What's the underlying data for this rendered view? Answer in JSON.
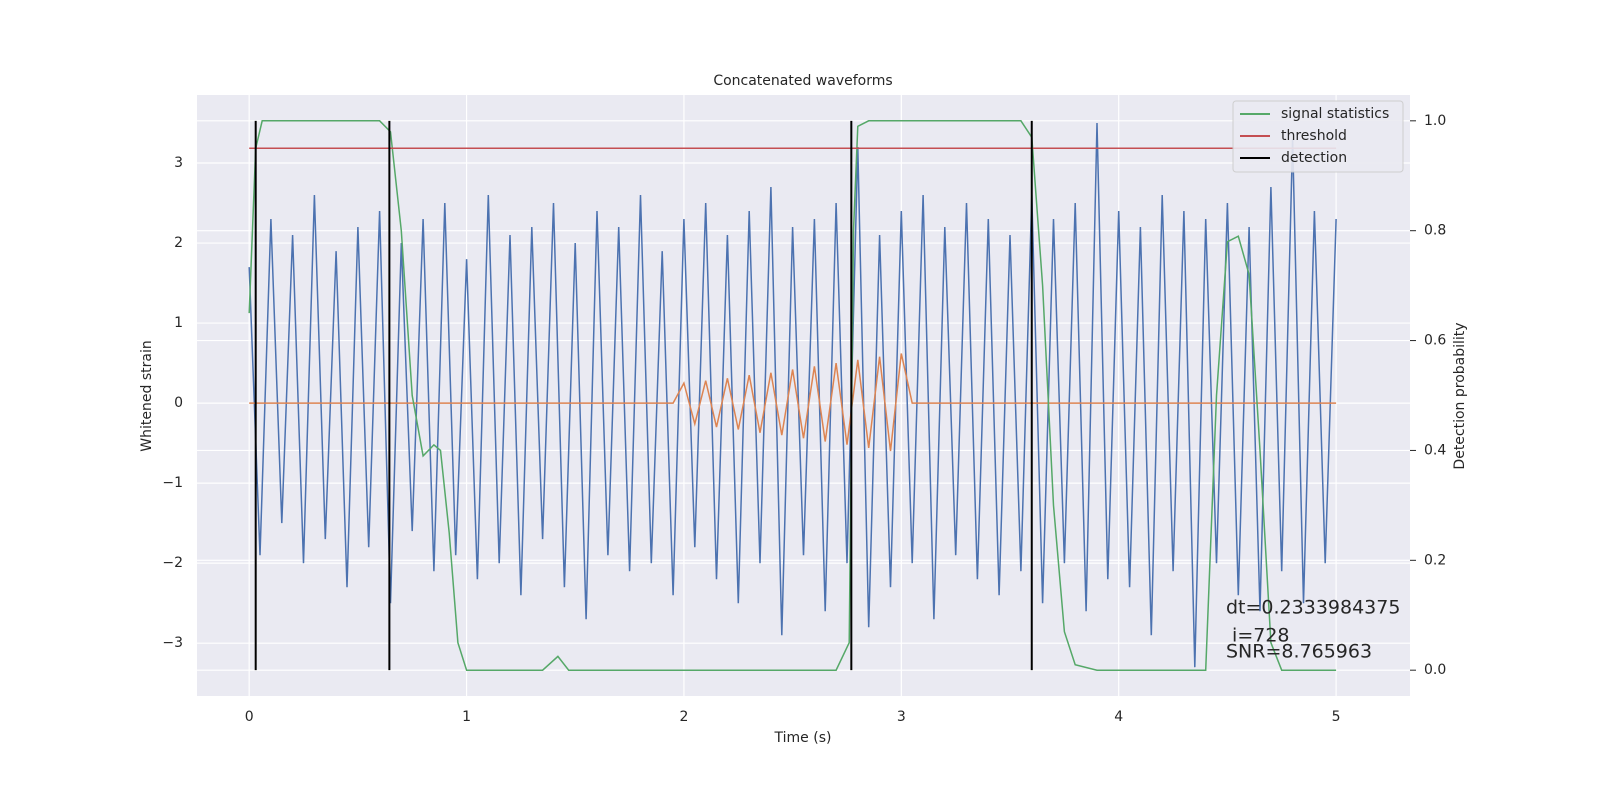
{
  "chart_data": {
    "type": "line",
    "title": "Concatenated waveforms",
    "xlabel": "Time (s)",
    "ylabel": "Whitened strain",
    "y2label": "Detection probability",
    "xlim": [
      -0.24,
      5.34
    ],
    "ylim": [
      -3.66,
      3.85
    ],
    "y2lim": [
      -0.047,
      1.047
    ],
    "xticks": [
      0,
      1,
      2,
      3,
      4,
      5
    ],
    "yticks": [
      {
        "value": -3,
        "label": "−3"
      },
      {
        "value": -2,
        "label": "−2"
      },
      {
        "value": -1,
        "label": "−1"
      },
      0,
      1,
      2,
      3
    ],
    "y2ticks": [
      {
        "value": 0,
        "label": "0.0"
      },
      {
        "value": 0.2,
        "label": "0.2"
      },
      {
        "value": 0.4,
        "label": "0.4"
      },
      {
        "value": 0.6,
        "label": "0.6"
      },
      {
        "value": 0.8,
        "label": "0.8"
      },
      {
        "value": 1,
        "label": "1.0"
      }
    ],
    "grid": true,
    "legend": "upper right",
    "x": [
      0,
      0.05,
      0.1,
      0.15,
      0.2,
      0.25,
      0.3,
      0.35,
      0.4,
      0.45,
      0.5,
      0.55,
      0.6,
      0.65,
      0.7,
      0.75,
      0.8,
      0.85,
      0.9,
      0.95,
      1,
      1.05,
      1.1,
      1.15,
      1.2,
      1.25,
      1.3,
      1.35,
      1.4,
      1.45,
      1.5,
      1.55,
      1.6,
      1.65,
      1.7,
      1.75,
      1.8,
      1.85,
      1.9,
      1.95,
      2,
      2.05,
      2.1,
      2.15,
      2.2,
      2.25,
      2.3,
      2.35,
      2.4,
      2.45,
      2.5,
      2.55,
      2.6,
      2.65,
      2.7,
      2.75,
      2.8,
      2.85,
      2.9,
      2.95,
      3,
      3.05,
      3.1,
      3.15,
      3.2,
      3.25,
      3.3,
      3.35,
      3.4,
      3.45,
      3.5,
      3.55,
      3.6,
      3.65,
      3.7,
      3.75,
      3.8,
      3.85,
      3.9,
      3.95,
      4,
      4.05,
      4.1,
      4.15,
      4.2,
      4.25,
      4.3,
      4.35,
      4.4,
      4.45,
      4.5,
      4.55,
      4.6,
      4.65,
      4.7,
      4.75,
      4.8,
      4.85,
      4.9,
      4.95,
      5
    ],
    "series": [
      {
        "color": "#4c72b0",
        "values": [
          1.7,
          -1.9,
          2.3,
          -1.5,
          2.1,
          -2.0,
          2.6,
          -1.7,
          1.9,
          -2.3,
          2.2,
          -1.8,
          2.4,
          -2.5,
          2.0,
          -1.6,
          2.3,
          -2.1,
          2.5,
          -1.9,
          1.8,
          -2.2,
          2.6,
          -2.0,
          2.1,
          -2.4,
          2.2,
          -1.7,
          2.5,
          -2.3,
          2.0,
          -2.7,
          2.4,
          -1.9,
          2.2,
          -2.1,
          2.6,
          -2.0,
          1.9,
          -2.4,
          2.3,
          -1.8,
          2.5,
          -2.2,
          2.1,
          -2.5,
          2.4,
          -2.0,
          2.7,
          -2.9,
          2.2,
          -1.9,
          2.3,
          -2.6,
          2.5,
          -2.0,
          3.2,
          -2.8,
          2.1,
          -2.3,
          2.4,
          -2.0,
          2.6,
          -2.7,
          2.2,
          -1.9,
          2.5,
          -2.2,
          2.3,
          -2.4,
          2.1,
          -2.1,
          2.6,
          -2.5,
          2.3,
          -2.0,
          2.5,
          -2.6,
          3.5,
          -2.2,
          2.4,
          -2.3,
          2.2,
          -2.9,
          2.6,
          -2.1,
          2.4,
          -3.3,
          2.3,
          -2.0,
          2.5,
          -2.4,
          2.2,
          -2.6,
          2.7,
          -2.1,
          3.3,
          -2.5,
          2.4,
          -2.0,
          2.3
        ]
      },
      {
        "color": "#dd8452",
        "values": [
          0,
          0,
          0,
          0,
          0,
          0,
          0,
          0,
          0,
          0,
          0,
          0,
          0,
          0,
          0,
          0,
          0,
          0,
          0,
          0,
          0,
          0,
          0,
          0,
          0,
          0,
          0,
          0,
          0,
          0,
          0,
          0,
          0,
          0,
          0,
          0,
          0,
          0,
          0,
          0,
          0.25,
          -0.26,
          0.28,
          -0.3,
          0.31,
          -0.33,
          0.35,
          -0.37,
          0.38,
          -0.4,
          0.42,
          -0.44,
          0.46,
          -0.48,
          0.5,
          -0.52,
          0.54,
          -0.56,
          0.58,
          -0.6,
          0.62,
          0,
          0,
          0,
          0,
          0,
          0,
          0,
          0,
          0,
          0,
          0,
          0,
          0,
          0,
          0,
          0,
          0,
          0,
          0,
          0,
          0,
          0,
          0,
          0,
          0,
          0,
          0,
          0,
          0,
          0,
          0,
          0,
          0,
          0,
          0,
          0,
          0,
          0,
          0,
          0
        ]
      },
      {
        "name": "signal statistics",
        "color": "#55a868",
        "axis": "y2",
        "x": [
          0,
          0.03,
          0.06,
          0.6,
          0.65,
          0.7,
          0.75,
          0.8,
          0.85,
          0.88,
          0.92,
          0.96,
          1.0,
          1.35,
          1.42,
          1.47,
          2.7,
          2.76,
          2.78,
          2.8,
          2.85,
          3.55,
          3.6,
          3.65,
          3.7,
          3.75,
          3.8,
          3.9,
          4.4,
          4.45,
          4.5,
          4.55,
          4.6,
          4.65,
          4.7,
          4.75,
          5.0
        ],
        "values": [
          0.65,
          0.95,
          1.0,
          1.0,
          0.98,
          0.8,
          0.5,
          0.39,
          0.41,
          0.4,
          0.25,
          0.05,
          0.0,
          0.0,
          0.025,
          0.0,
          0.0,
          0.05,
          0.8,
          0.99,
          1.0,
          1.0,
          0.97,
          0.7,
          0.3,
          0.07,
          0.01,
          0.0,
          0.0,
          0.5,
          0.78,
          0.79,
          0.72,
          0.4,
          0.05,
          0.0,
          0.0
        ]
      },
      {
        "name": "threshold",
        "color": "#c44e52",
        "axis": "y2",
        "x": [
          0,
          5
        ],
        "values": [
          0.95,
          0.95
        ]
      }
    ],
    "detections": {
      "name": "detection",
      "color": "#000000",
      "x": [
        0.03,
        0.645,
        2.77,
        3.6
      ],
      "range": [
        0,
        1
      ]
    },
    "annotations": [
      "dt=0.2333984375",
      " i=728",
      "SNR=8.765963"
    ]
  }
}
